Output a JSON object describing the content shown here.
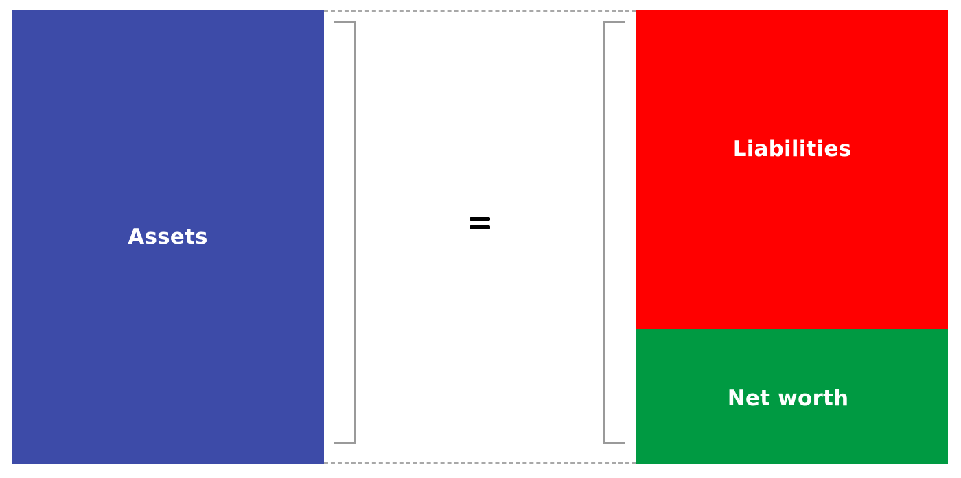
{
  "diagram": {
    "assets": {
      "label": "Assets",
      "color": "#3d4ba8"
    },
    "equals": {
      "symbol": "="
    },
    "liabilities": {
      "label": "Liabilities",
      "color": "#ff0000"
    },
    "net_worth": {
      "label": "Net worth",
      "color": "#009a42"
    }
  }
}
